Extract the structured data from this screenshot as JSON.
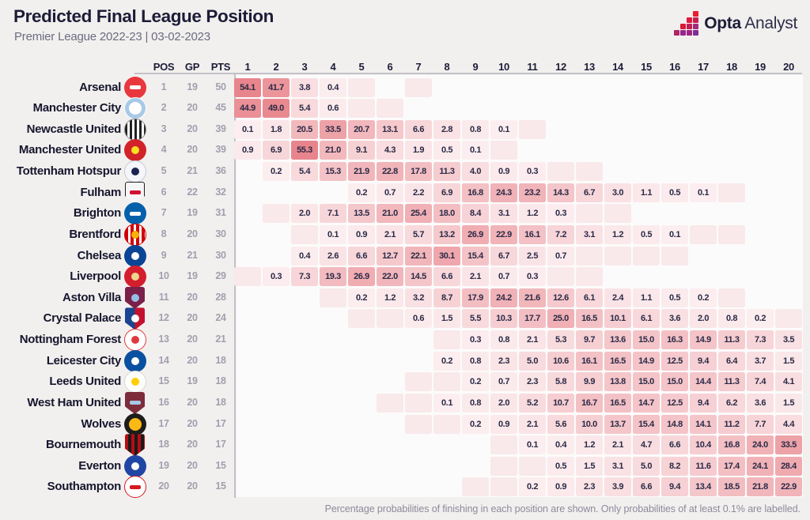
{
  "header": {
    "title": "Predicted Final League Position",
    "subtitle": "Premier League 2022-23 | 03-02-2023"
  },
  "brand": {
    "name_bold": "Opta",
    "name_light": "Analyst"
  },
  "footer": {
    "note": "Percentage probabilities of finishing in each position are shown. Only probabilities of at least 0.1% are labelled."
  },
  "colors": {
    "page_bg": "#f2f0ee",
    "plot_bg": "#fcfbfb",
    "line": "#c3c1c8",
    "ink": "#1c1c38",
    "muted": "#a19fae",
    "cell_low": "#fceff1",
    "cell_high": "#e8858c",
    "cell_faint": "#f9e9eb",
    "logo_stairs": [
      "#ed1b2f",
      "#e01a3c",
      "#c81e50",
      "#d91936",
      "#c21d55",
      "#a62878",
      "#b32166",
      "#93278f",
      "#a12480",
      "#7f2d96"
    ]
  },
  "chart_data": {
    "type": "heatmap",
    "title": "Predicted Final League Position",
    "subtitle": "Premier League 2022-23 | 03-02-2023",
    "stat_headers": [
      "POS",
      "GP",
      "PTS"
    ],
    "position_columns": [
      1,
      2,
      3,
      4,
      5,
      6,
      7,
      8,
      9,
      10,
      11,
      12,
      13,
      14,
      15,
      16,
      17,
      18,
      19,
      20
    ],
    "note": "cells: number = labelled probability (%), \"f\" = shaded but below 0.1% label threshold, null = zero",
    "teams": [
      {
        "name": "Arsenal",
        "pos": 1,
        "gp": 19,
        "pts": 50,
        "cells": [
          54.1,
          41.7,
          3.8,
          0.4,
          "f",
          null,
          "f",
          null,
          null,
          null,
          null,
          null,
          null,
          null,
          null,
          null,
          null,
          null,
          null,
          null
        ],
        "logo": {
          "shape": "circle",
          "bg": "#e8373d",
          "border": "",
          "inner": "#ffffff",
          "inner_shape": "bar"
        }
      },
      {
        "name": "Manchester City",
        "pos": 2,
        "gp": 20,
        "pts": 45,
        "cells": [
          44.9,
          49.0,
          5.4,
          0.6,
          "f",
          "f",
          null,
          null,
          null,
          null,
          null,
          null,
          null,
          null,
          null,
          null,
          null,
          null,
          null,
          null
        ],
        "logo": {
          "shape": "circle",
          "bg": "#a8c9e6",
          "border": "#ffffff",
          "inner": "#ffffff",
          "inner_shape": "big-dot"
        }
      },
      {
        "name": "Newcastle United",
        "pos": 3,
        "gp": 20,
        "pts": 39,
        "cells": [
          0.1,
          1.8,
          20.5,
          33.5,
          20.7,
          13.1,
          6.6,
          2.8,
          0.8,
          0.1,
          "f",
          null,
          null,
          null,
          null,
          null,
          null,
          null,
          null,
          null
        ],
        "logo": {
          "shape": "circle",
          "bg": "repeating-linear-gradient(90deg,#222222 0 3px,#ffffff 3px 6px)",
          "border": "#8a8a8a",
          "inner": "",
          "inner_shape": ""
        }
      },
      {
        "name": "Manchester United",
        "pos": 4,
        "gp": 20,
        "pts": 39,
        "cells": [
          0.9,
          6.9,
          55.3,
          21.0,
          9.1,
          4.3,
          1.9,
          0.5,
          0.1,
          "f",
          null,
          null,
          null,
          null,
          null,
          null,
          null,
          null,
          null,
          null
        ],
        "logo": {
          "shape": "circle",
          "bg": "#d2232a",
          "border": "",
          "inner": "#fbe122",
          "inner_shape": "dot"
        }
      },
      {
        "name": "Tottenham Hotspur",
        "pos": 5,
        "gp": 21,
        "pts": 36,
        "cells": [
          null,
          0.2,
          5.4,
          15.3,
          21.9,
          22.8,
          17.8,
          11.3,
          4.0,
          0.9,
          0.3,
          "f",
          "f",
          null,
          null,
          null,
          null,
          null,
          null,
          null
        ],
        "logo": {
          "shape": "circle",
          "bg": "#f4f6fa",
          "border": "#c6cbd8",
          "inner": "#1b2553",
          "inner_shape": "dot"
        }
      },
      {
        "name": "Fulham",
        "pos": 6,
        "gp": 22,
        "pts": 32,
        "cells": [
          null,
          null,
          null,
          null,
          0.2,
          0.7,
          2.2,
          6.9,
          16.8,
          24.3,
          23.2,
          14.3,
          6.7,
          3.0,
          1.1,
          0.5,
          0.1,
          "f",
          null,
          null
        ],
        "logo": {
          "shape": "shield",
          "bg": "#f6f6f6",
          "border": "#222222",
          "inner": "#d21034",
          "inner_shape": "bar"
        }
      },
      {
        "name": "Brighton",
        "pos": 7,
        "gp": 19,
        "pts": 31,
        "cells": [
          null,
          "f",
          2.0,
          7.1,
          13.5,
          21.0,
          25.4,
          18.0,
          8.4,
          3.1,
          1.2,
          0.3,
          "f",
          "f",
          null,
          null,
          null,
          null,
          null,
          null
        ],
        "logo": {
          "shape": "circle",
          "bg": "#0560ac",
          "border": "",
          "inner": "#ffffff",
          "inner_shape": "bar"
        }
      },
      {
        "name": "Brentford",
        "pos": 8,
        "gp": 20,
        "pts": 30,
        "cells": [
          null,
          null,
          "f",
          0.1,
          0.9,
          2.1,
          5.7,
          13.2,
          26.9,
          22.9,
          16.1,
          7.2,
          3.1,
          1.2,
          0.5,
          0.1,
          "f",
          "f",
          null,
          null
        ],
        "logo": {
          "shape": "circle",
          "bg": "repeating-linear-gradient(90deg,#d20000 0 4px,#ffffff 4px 7px)",
          "border": "#d20000",
          "inner": "#f9b104",
          "inner_shape": "dot"
        }
      },
      {
        "name": "Chelsea",
        "pos": 9,
        "gp": 21,
        "pts": 30,
        "cells": [
          null,
          null,
          0.4,
          2.6,
          6.6,
          12.7,
          22.1,
          30.1,
          15.4,
          6.7,
          2.5,
          0.7,
          "f",
          "f",
          "f",
          "f",
          null,
          null,
          null,
          null
        ],
        "logo": {
          "shape": "circle",
          "bg": "#0a4595",
          "border": "",
          "inner": "#ffffff",
          "inner_shape": "dot"
        }
      },
      {
        "name": "Liverpool",
        "pos": 10,
        "gp": 19,
        "pts": 29,
        "cells": [
          "f",
          0.3,
          7.3,
          19.3,
          26.9,
          22.0,
          14.5,
          6.6,
          2.1,
          0.7,
          0.3,
          "f",
          "f",
          null,
          null,
          null,
          null,
          null,
          null,
          null
        ],
        "logo": {
          "shape": "circle",
          "bg": "#d41e2e",
          "border": "",
          "inner": "#f0d58c",
          "inner_shape": "dot"
        }
      },
      {
        "name": "Aston Villa",
        "pos": 11,
        "gp": 20,
        "pts": 28,
        "cells": [
          null,
          null,
          null,
          "f",
          0.2,
          1.2,
          3.2,
          8.7,
          17.9,
          24.2,
          21.6,
          12.6,
          6.1,
          2.4,
          1.1,
          0.5,
          0.2,
          "f",
          null,
          null
        ],
        "logo": {
          "shape": "shield",
          "bg": "#7a2049",
          "border": "",
          "inner": "#95bfe5",
          "inner_shape": "dot"
        }
      },
      {
        "name": "Crystal Palace",
        "pos": 12,
        "gp": 20,
        "pts": 24,
        "cells": [
          null,
          null,
          null,
          null,
          "f",
          "f",
          0.6,
          1.5,
          5.5,
          10.3,
          17.7,
          25.0,
          16.5,
          10.1,
          6.1,
          3.6,
          2.0,
          0.8,
          0.2,
          "f"
        ],
        "logo": {
          "shape": "shield",
          "bg": "linear-gradient(90deg,#1b458f 0 50%,#c4122e 50% 100%)",
          "border": "",
          "inner": "#ffffff",
          "inner_shape": "dot"
        }
      },
      {
        "name": "Nottingham Forest",
        "pos": 13,
        "gp": 20,
        "pts": 21,
        "cells": [
          null,
          null,
          null,
          null,
          null,
          null,
          null,
          "f",
          0.3,
          0.8,
          2.1,
          5.3,
          9.7,
          13.6,
          15.0,
          16.3,
          14.9,
          11.3,
          7.3,
          3.5
        ],
        "logo": {
          "shape": "circle",
          "bg": "#ffffff",
          "border": "#e03a3e",
          "inner": "#e03a3e",
          "inner_shape": "dot"
        }
      },
      {
        "name": "Leicester City",
        "pos": 14,
        "gp": 20,
        "pts": 18,
        "cells": [
          null,
          null,
          null,
          null,
          null,
          null,
          null,
          0.2,
          0.8,
          2.3,
          5.0,
          10.6,
          16.1,
          16.5,
          14.9,
          12.5,
          9.4,
          6.4,
          3.7,
          1.5
        ],
        "logo": {
          "shape": "circle",
          "bg": "#0a50a1",
          "border": "",
          "inner": "#ffffff",
          "inner_shape": "dot"
        }
      },
      {
        "name": "Leeds United",
        "pos": 15,
        "gp": 19,
        "pts": 18,
        "cells": [
          null,
          null,
          null,
          null,
          null,
          null,
          "f",
          "f",
          0.2,
          0.7,
          2.3,
          5.8,
          9.9,
          13.8,
          15.0,
          15.0,
          14.4,
          11.3,
          7.4,
          4.1
        ],
        "logo": {
          "shape": "circle",
          "bg": "#fdfdfb",
          "border": "#d8d8d0",
          "inner": "#ffcd00",
          "inner_shape": "dot"
        }
      },
      {
        "name": "West Ham United",
        "pos": 16,
        "gp": 20,
        "pts": 18,
        "cells": [
          null,
          null,
          null,
          null,
          null,
          "f",
          "f",
          0.1,
          0.8,
          2.0,
          5.2,
          10.7,
          16.7,
          16.5,
          14.7,
          12.5,
          9.4,
          6.2,
          3.6,
          1.5
        ],
        "logo": {
          "shape": "shield",
          "bg": "#7c2c3b",
          "border": "",
          "inner": "#a7c7e7",
          "inner_shape": "bar"
        }
      },
      {
        "name": "Wolves",
        "pos": 17,
        "gp": 20,
        "pts": 17,
        "cells": [
          null,
          null,
          null,
          null,
          null,
          null,
          "f",
          "f",
          0.2,
          0.9,
          2.1,
          5.6,
          10.0,
          13.7,
          15.4,
          14.8,
          14.1,
          11.2,
          7.7,
          4.4
        ],
        "logo": {
          "shape": "circle",
          "bg": "#1d1d1b",
          "border": "",
          "inner": "#fdb913",
          "inner_shape": "big-dot"
        }
      },
      {
        "name": "Bournemouth",
        "pos": 18,
        "gp": 20,
        "pts": 17,
        "cells": [
          null,
          null,
          null,
          null,
          null,
          null,
          null,
          null,
          null,
          "f",
          0.1,
          0.4,
          1.2,
          2.1,
          4.7,
          6.6,
          10.4,
          16.8,
          24.0,
          33.5
        ],
        "logo": {
          "shape": "shield",
          "bg": "repeating-linear-gradient(90deg,#b50d12 0 4px,#1a1a1a 4px 8px)",
          "border": "",
          "inner": "",
          "inner_shape": ""
        }
      },
      {
        "name": "Everton",
        "pos": 19,
        "gp": 20,
        "pts": 15,
        "cells": [
          null,
          null,
          null,
          null,
          null,
          null,
          null,
          null,
          null,
          "f",
          "f",
          0.5,
          1.5,
          3.1,
          5.0,
          8.2,
          11.6,
          17.4,
          24.1,
          28.4
        ],
        "logo": {
          "shape": "circle",
          "bg": "#2046a5",
          "border": "",
          "inner": "#ffffff",
          "inner_shape": "dot"
        }
      },
      {
        "name": "Southampton",
        "pos": 20,
        "gp": 20,
        "pts": 15,
        "cells": [
          null,
          null,
          null,
          null,
          null,
          null,
          null,
          null,
          "f",
          "f",
          0.2,
          0.9,
          2.3,
          3.9,
          6.6,
          9.4,
          13.4,
          18.5,
          21.8,
          22.9
        ],
        "logo": {
          "shape": "circle",
          "bg": "#ffffff",
          "border": "#d71920",
          "inner": "#d71920",
          "inner_shape": "bar"
        }
      }
    ]
  }
}
